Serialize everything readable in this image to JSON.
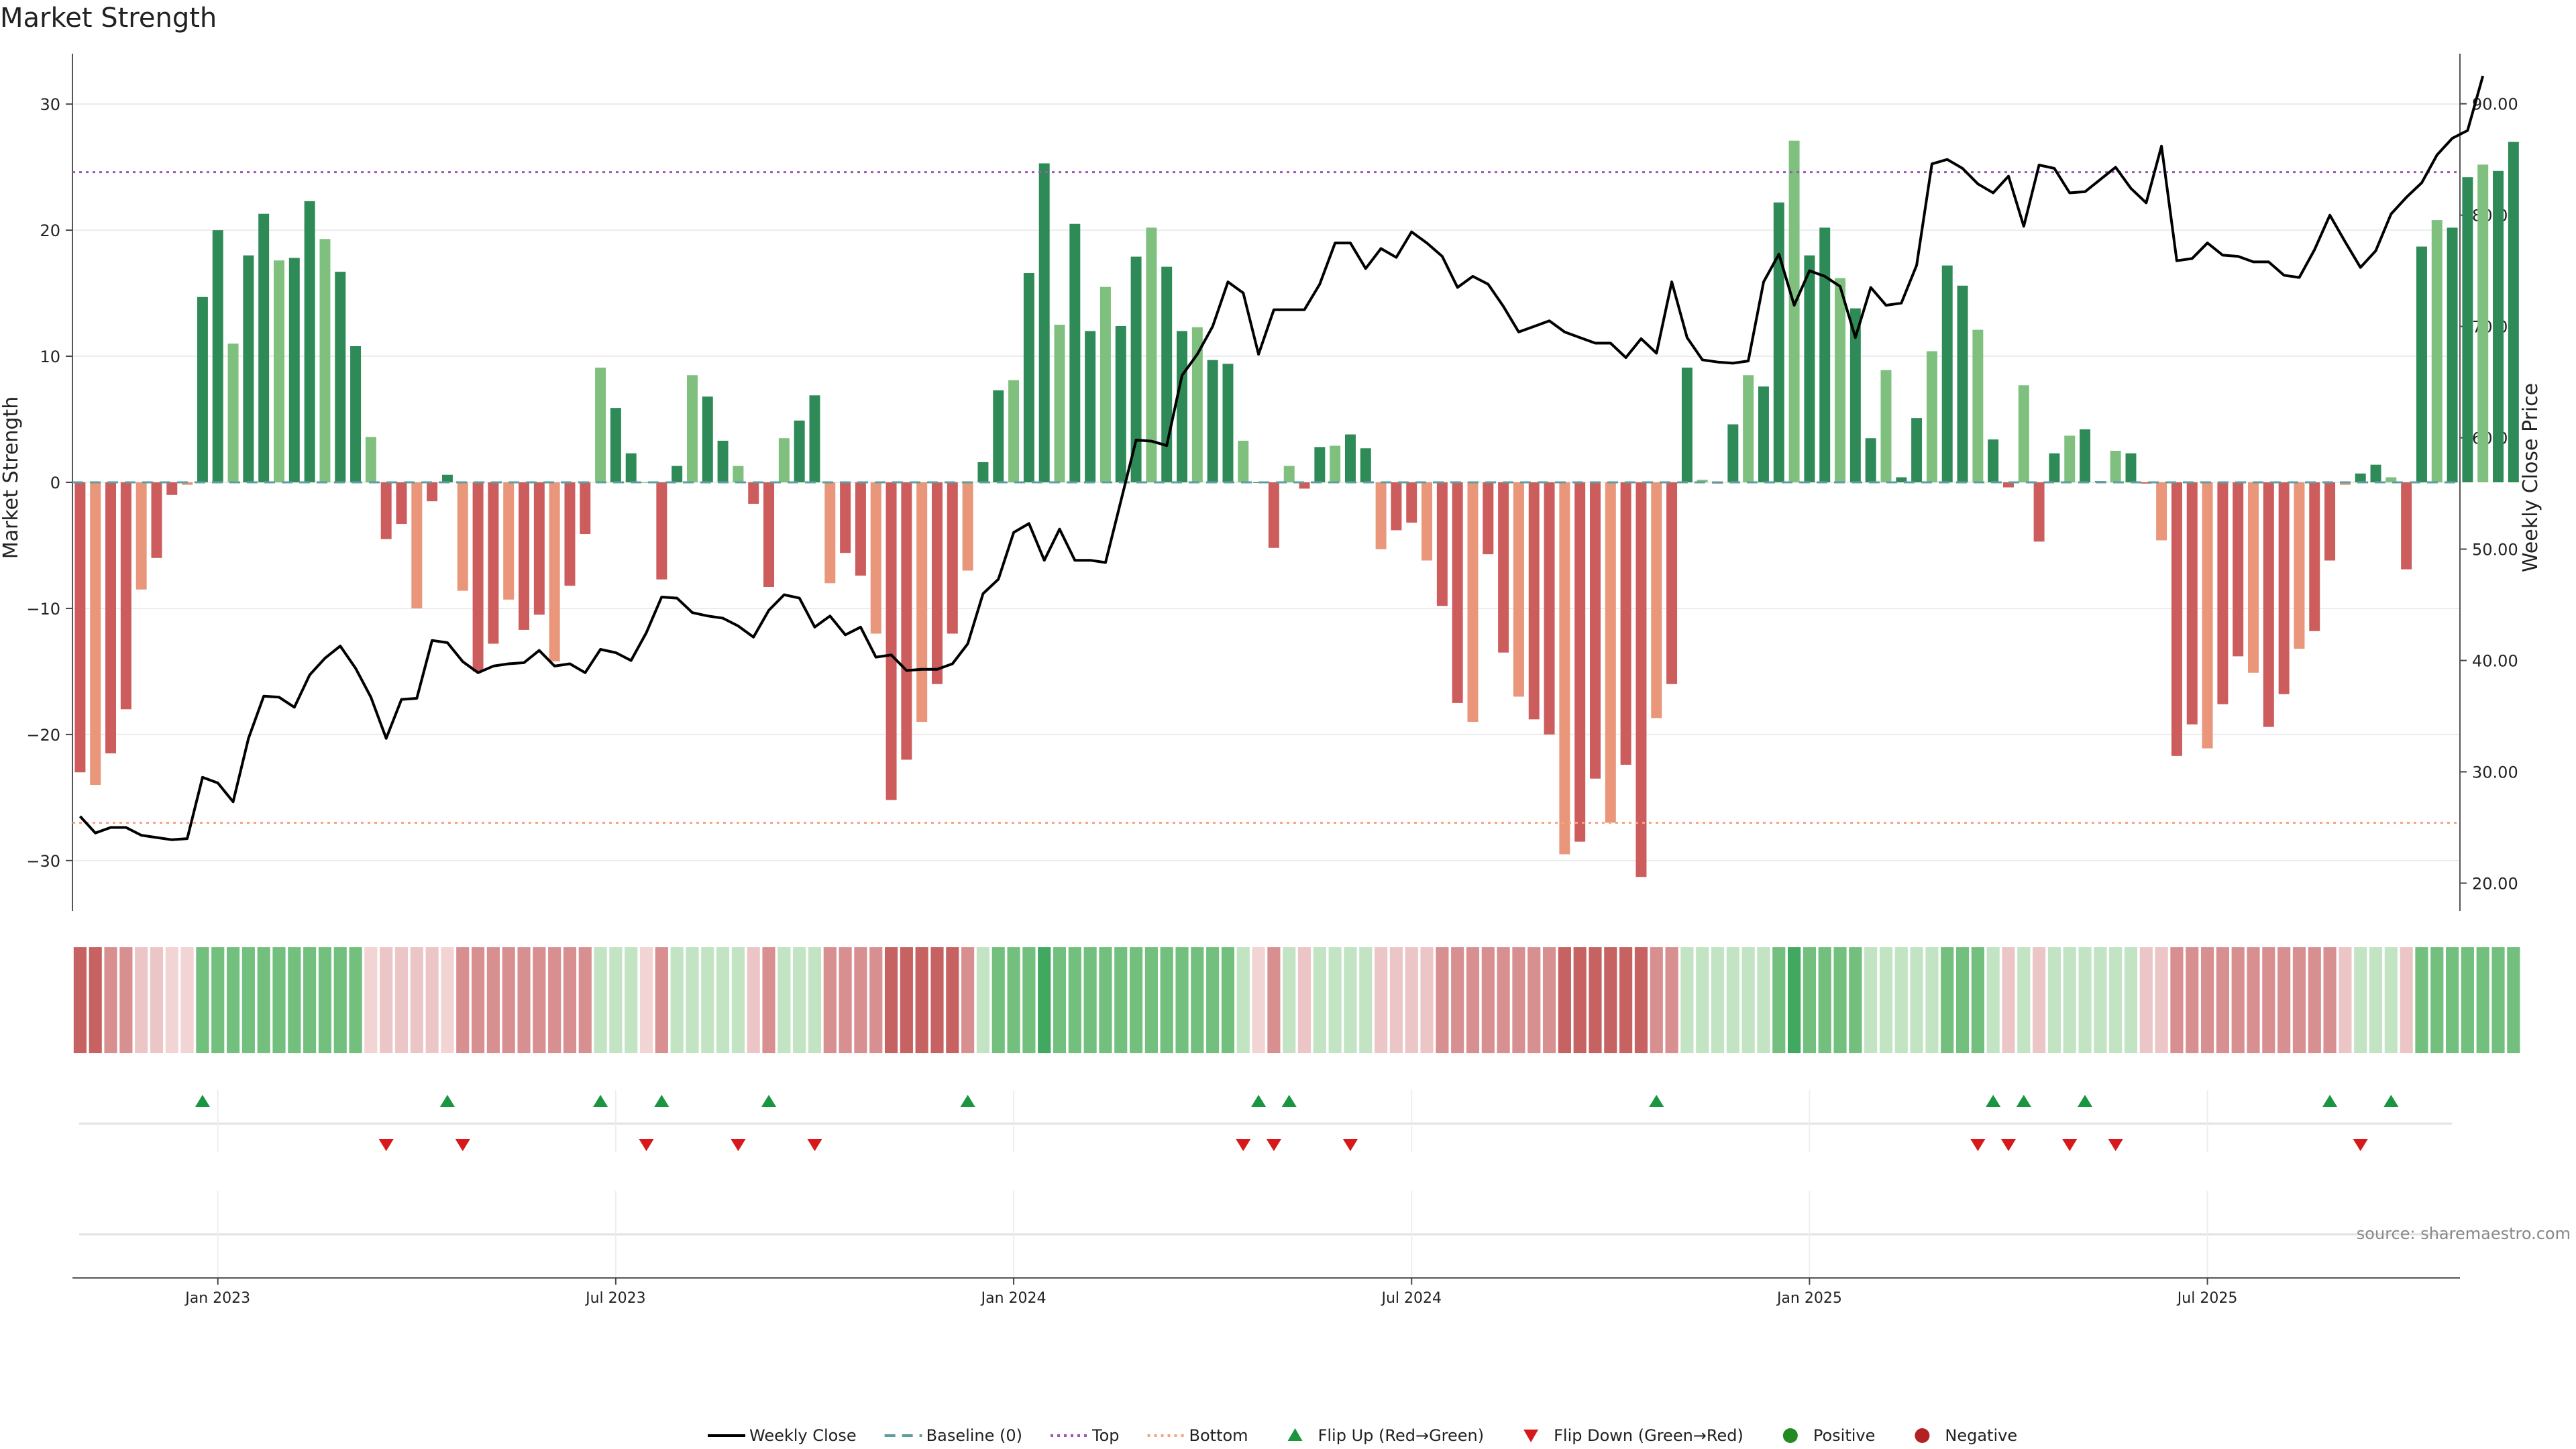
{
  "chart_data": {
    "type": "bar",
    "title": "Market Strength",
    "ylabel_left": "Market Strength",
    "ylabel_right": "Weekly Close Price",
    "source": "source: sharemaestro.com",
    "ylim_left": [
      -34,
      34
    ],
    "ylim_right": [
      17.5,
      94.5
    ],
    "yticks_left": [
      30,
      20,
      10,
      0,
      -10,
      -20,
      -30
    ],
    "ytick_labels_left": [
      "30",
      "20",
      "10",
      "0",
      "−10",
      "−20",
      "−30"
    ],
    "yticks_right": [
      90,
      80,
      70,
      60,
      50,
      40,
      30,
      20
    ],
    "ytick_labels_right": [
      "90.00",
      "80.00",
      "70.00",
      "60.00",
      "50.00",
      "40.00",
      "30.00",
      "20.00"
    ],
    "x_weeks": 156,
    "xticks": [
      {
        "week": 9,
        "label": "Jan 2023"
      },
      {
        "week": 35,
        "label": "Jul 2023"
      },
      {
        "week": 61,
        "label": "Jan 2024"
      },
      {
        "week": 87,
        "label": "Jul 2024"
      },
      {
        "week": 113,
        "label": "Jan 2025"
      },
      {
        "week": 139,
        "label": "Jul 2025"
      }
    ],
    "top_line": 24.6,
    "bottom_line": -27,
    "bars": [
      -23,
      -24,
      -21.5,
      -18,
      -8.5,
      -6,
      -1,
      -0.2,
      14.7,
      20,
      11,
      18,
      21.3,
      17.6,
      17.8,
      22.3,
      19.3,
      16.7,
      10.8,
      3.6,
      -4.5,
      -3.3,
      -10,
      -1.5,
      0.6,
      -8.6,
      -15,
      -12.8,
      -9.3,
      -11.7,
      -10.5,
      -14.2,
      -8.2,
      -4.1,
      9.1,
      5.9,
      2.3,
      0,
      -7.7,
      1.3,
      8.5,
      6.8,
      3.3,
      1.3,
      -1.7,
      -8.3,
      3.5,
      4.9,
      6.9,
      -8,
      -5.6,
      -7.4,
      -12,
      -25.2,
      -22,
      -19,
      -16,
      -12,
      -7,
      1.6,
      7.3,
      8.1,
      16.6,
      25.3,
      12.5,
      20.5,
      12,
      15.5,
      12.4,
      17.9,
      20.2,
      17.1,
      12,
      12.3,
      9.7,
      9.4,
      3.3,
      0,
      -5.2,
      1.3,
      -0.5,
      2.8,
      2.9,
      3.8,
      2.7,
      -5.3,
      -3.8,
      -3.2,
      -6.2,
      -9.8,
      -17.5,
      -19,
      -5.7,
      -13.5,
      -17,
      -18.8,
      -20,
      -29.5,
      -28.5,
      -23.5,
      -27,
      -22.4,
      -31.3,
      -18.7,
      -16,
      9.1,
      0.2,
      -0.1,
      4.6,
      8.5,
      7.6,
      22.2,
      27.1,
      18,
      20.2,
      16.2,
      13.8,
      3.5,
      8.9,
      0.4,
      5.1,
      10.4,
      17.2,
      15.6,
      12.1,
      3.4,
      -0.4,
      7.7,
      -4.7,
      2.3,
      3.7,
      4.2,
      0.1,
      2.5,
      2.3,
      -0.1,
      -4.6,
      -21.7,
      -19.2,
      -21.1,
      -17.6,
      -13.8,
      -15.1,
      -19.4,
      -16.8,
      -13.2,
      -11.8,
      -6.2,
      -0.2,
      0.7,
      1.4,
      0.4,
      -6.9,
      18.7,
      20.8,
      20.2,
      24.2,
      25.2,
      24.7,
      27
    ],
    "close": [
      26.0,
      24.5,
      25.0,
      25.0,
      24.3,
      24.1,
      23.9,
      24.0,
      29.5,
      29.0,
      27.3,
      33.0,
      36.8,
      36.7,
      35.8,
      38.7,
      40.2,
      41.3,
      39.3,
      36.7,
      33.0,
      36.5,
      36.6,
      41.8,
      41.6,
      39.9,
      38.9,
      39.5,
      39.7,
      39.8,
      40.9,
      39.5,
      39.7,
      38.9,
      41.0,
      40.7,
      40.0,
      42.5,
      45.7,
      45.6,
      44.3,
      44.0,
      43.8,
      43.1,
      42.1,
      44.5,
      45.9,
      45.6,
      43.0,
      44.0,
      42.3,
      43.0,
      40.3,
      40.5,
      39.1,
      39.2,
      39.2,
      39.7,
      41.5,
      46.0,
      47.3,
      51.5,
      52.3,
      49.0,
      51.8,
      49.0,
      49.0,
      48.8,
      54.3,
      59.8,
      59.7,
      59.3,
      65.6,
      67.5,
      70.0,
      74.0,
      73.0,
      67.5,
      71.5,
      71.5,
      71.5,
      73.8,
      77.5,
      77.5,
      75.2,
      77.0,
      76.2,
      78.5,
      77.5,
      76.3,
      73.5,
      74.5,
      73.8,
      71.8,
      69.5,
      70.0,
      70.5,
      69.5,
      69.0,
      68.5,
      68.5,
      67.2,
      68.9,
      67.6,
      74.0,
      69.0,
      67.0,
      66.8,
      66.7,
      66.9,
      74.0,
      76.5,
      71.9,
      75.0,
      74.5,
      73.6,
      69.0,
      73.5,
      71.9,
      72.1,
      75.5,
      84.6,
      85.0,
      84.2,
      82.8,
      82.0,
      83.5,
      79.0,
      84.5,
      84.2,
      82.0,
      82.1,
      83.2,
      84.3,
      82.4,
      81.1,
      86.2,
      75.9,
      76.1,
      77.5,
      76.4,
      76.3,
      75.8,
      75.8,
      74.6,
      74.4,
      76.9,
      80.0,
      77.6,
      75.3,
      76.8,
      80.1,
      81.6,
      82.9,
      85.4,
      86.9,
      87.6,
      92.5
    ],
    "momentum": [
      -3,
      -3,
      -2,
      -2,
      -1,
      -1,
      0,
      0,
      2,
      2,
      2,
      2,
      2,
      2,
      2,
      2,
      2,
      2,
      2,
      0,
      -1,
      -1,
      -1,
      -1,
      0,
      -2,
      -2,
      -2,
      -2,
      -2,
      -2,
      -2,
      -2,
      -2,
      1,
      1,
      1,
      0,
      -2,
      1,
      1,
      1,
      1,
      1,
      -1,
      -2,
      1,
      1,
      1,
      -2,
      -2,
      -2,
      -2,
      -3,
      -3,
      -3,
      -3,
      -3,
      -2,
      1,
      2,
      2,
      2,
      3,
      2,
      2,
      2,
      2,
      2,
      2,
      2,
      2,
      2,
      2,
      2,
      2,
      1,
      0,
      -2,
      1,
      -1,
      1,
      1,
      1,
      1,
      -1,
      -1,
      -1,
      -1,
      -2,
      -2,
      -2,
      -2,
      -2,
      -2,
      -2,
      -2,
      -3,
      -3,
      -3,
      -3,
      -3,
      -3,
      -2,
      -2,
      1,
      1,
      1,
      1,
      1,
      1,
      2,
      3,
      2,
      2,
      2,
      2,
      1,
      1,
      1,
      1,
      1,
      2,
      2,
      2,
      1,
      -1,
      1,
      -1,
      1,
      1,
      1,
      1,
      1,
      1,
      -1,
      -1,
      -2,
      -2,
      -2,
      -2,
      -2,
      -2,
      -2,
      -2,
      -2,
      -2,
      -2,
      -1,
      1,
      1,
      1,
      -1,
      2,
      2,
      2,
      2,
      2,
      2,
      2
    ],
    "flip_up_weeks": [
      8,
      24,
      34,
      38,
      45,
      58,
      77,
      79,
      103,
      125,
      127,
      131,
      147,
      151
    ],
    "flip_down_weeks": [
      20,
      25,
      37,
      43,
      48,
      76,
      78,
      83,
      124,
      126,
      130,
      133,
      149
    ],
    "colors": {
      "pos_strong": "#2e8b57",
      "pos_light": "#7fc07f",
      "neg_strong": "#cd5c5c",
      "neg_light": "#e9967a",
      "close_line": "#000000",
      "top_line": "#9b59b6",
      "bottom_line": "#f4a582",
      "flip_up": "#1a9641",
      "flip_down": "#d7191c",
      "positive_dot": "#228b22",
      "negative_dot": "#b22222",
      "baseline": "#5f9ea0"
    },
    "legend": [
      {
        "key": "close",
        "label": "Weekly Close"
      },
      {
        "key": "baseline",
        "label": "Baseline (0)"
      },
      {
        "key": "top",
        "label": "Top"
      },
      {
        "key": "bottom",
        "label": "Bottom"
      },
      {
        "key": "flip_up",
        "label": "Flip Up (Red→Green)"
      },
      {
        "key": "flip_down",
        "label": "Flip Down (Green→Red)"
      },
      {
        "key": "positive",
        "label": "Positive"
      },
      {
        "key": "negative",
        "label": "Negative"
      }
    ],
    "legend_placement": "bottom-center",
    "grid": true
  }
}
